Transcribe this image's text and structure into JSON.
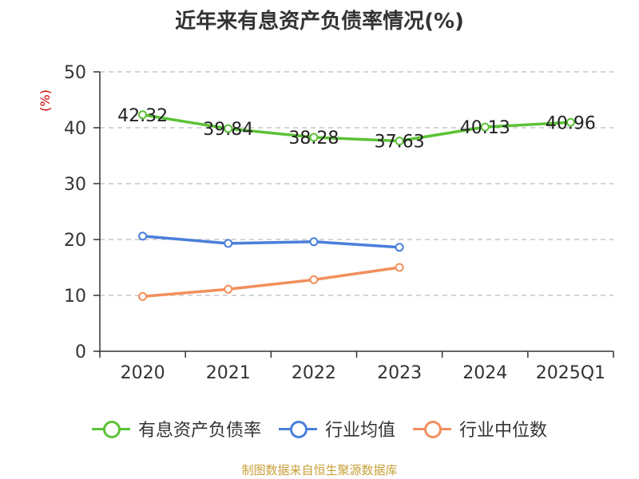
{
  "colors": {
    "debt_ratio": "#5bc236",
    "industry_avg": "#4a7fd9",
    "industry_median": "#f28f5c",
    "grid": "#bbbbbb",
    "axis": "#333333",
    "unit": "#cc0000",
    "source": "#c8a03a"
  },
  "chart_data": {
    "type": "line",
    "title": "近年来有息资产负债率情况(%)",
    "ylabel": "(%)",
    "xlabel": "",
    "categories": [
      "2020",
      "2021",
      "2022",
      "2023",
      "2024",
      "2025Q1"
    ],
    "ylim": [
      0,
      50
    ],
    "yticks": [
      0,
      10,
      20,
      30,
      40,
      50
    ],
    "grid": true,
    "legend_position": "bottom",
    "series": [
      {
        "name": "有息资产负债率",
        "color": "#5bc236",
        "values": [
          42.32,
          39.84,
          38.28,
          37.63,
          40.13,
          40.96
        ],
        "labels": [
          "42.32",
          "39.84",
          "38.28",
          "37.63",
          "40.13",
          "40.96"
        ],
        "show_labels": true
      },
      {
        "name": "行业均值",
        "color": "#4a7fd9",
        "values": [
          20.6,
          19.3,
          19.6,
          18.6,
          null,
          null
        ],
        "show_labels": false
      },
      {
        "name": "行业中位数",
        "color": "#f28f5c",
        "values": [
          9.8,
          11.1,
          12.8,
          15.0,
          null,
          null
        ],
        "show_labels": false
      }
    ]
  },
  "source": "制图数据来自恒生聚源数据库"
}
